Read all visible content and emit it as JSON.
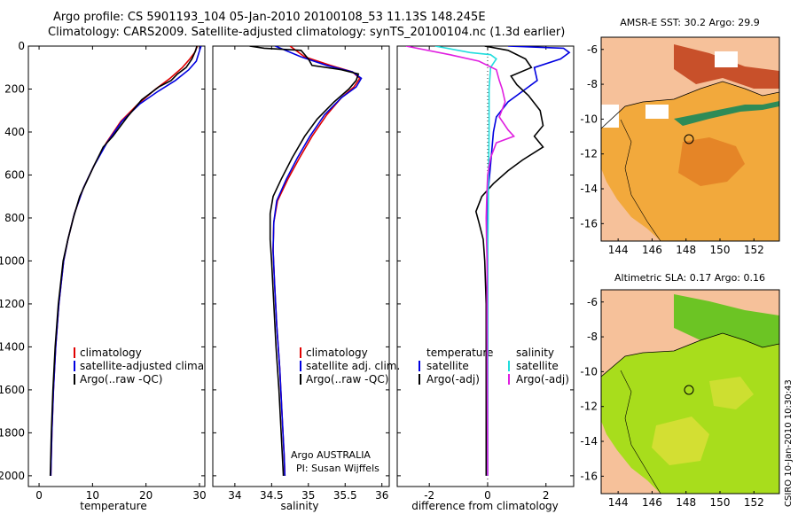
{
  "header": {
    "line1": "Argo profile: CS 5901193_104 05-Jan-2010 20100108_53 11.13S 148.245E",
    "line2": "Climatology: CARS2009. Satellite-adjusted climatology: synTS_20100104.nc (1.3d earlier)"
  },
  "credit": "CSIRO 10-Jan-2010 10:30:43",
  "colors": {
    "red": "#e00000",
    "blue": "#0000e0",
    "black": "#000000",
    "cyan": "#22dddd",
    "magenta": "#e020e0"
  },
  "chart_data": [
    {
      "type": "line",
      "id": "temperature",
      "xlabel": "temperature",
      "ylabel": "",
      "xlim": [
        -2,
        31
      ],
      "ylim": [
        0,
        2050
      ],
      "y_inverted": true,
      "xticks": [
        0,
        10,
        20,
        30
      ],
      "yticks": [
        0,
        200,
        400,
        600,
        800,
        1000,
        1200,
        1400,
        1600,
        1800,
        2000
      ],
      "legend": {
        "placement": "center-right",
        "entries": [
          "climatology",
          "satellite-adjusted climatology",
          "Argo(..raw -QC)"
        ]
      },
      "series": [
        {
          "name": "climatology",
          "color": "red",
          "points": [
            [
              29.6,
              0
            ],
            [
              29.1,
              30
            ],
            [
              28.2,
              60
            ],
            [
              26.8,
              100
            ],
            [
              24.5,
              150
            ],
            [
              21.8,
              200
            ],
            [
              18.5,
              270
            ],
            [
              15.3,
              350
            ],
            [
              12.6,
              450
            ],
            [
              10.2,
              560
            ],
            [
              8.3,
              660
            ],
            [
              6.6,
              780
            ],
            [
              5.4,
              900
            ],
            [
              4.6,
              1000
            ],
            [
              3.7,
              1200
            ],
            [
              3.1,
              1400
            ],
            [
              2.7,
              1600
            ],
            [
              2.4,
              1800
            ],
            [
              2.2,
              2000
            ]
          ]
        },
        {
          "name": "satellite-adjusted climatology",
          "color": "blue",
          "points": [
            [
              30.3,
              0
            ],
            [
              29.9,
              30
            ],
            [
              29.4,
              70
            ],
            [
              28.0,
              110
            ],
            [
              25.5,
              160
            ],
            [
              22.3,
              210
            ],
            [
              18.8,
              270
            ],
            [
              15.5,
              350
            ],
            [
              12.7,
              450
            ],
            [
              10.2,
              560
            ],
            [
              8.3,
              660
            ],
            [
              6.6,
              780
            ],
            [
              5.4,
              900
            ],
            [
              4.6,
              1000
            ],
            [
              3.7,
              1200
            ],
            [
              3.1,
              1400
            ],
            [
              2.7,
              1600
            ],
            [
              2.4,
              1800
            ],
            [
              2.2,
              2000
            ]
          ]
        },
        {
          "name": "Argo(..raw -QC)",
          "color": "black",
          "points": [
            [
              29.5,
              0
            ],
            [
              29.3,
              20
            ],
            [
              28.6,
              60
            ],
            [
              27.5,
              100
            ],
            [
              25.9,
              130
            ],
            [
              24.7,
              160
            ],
            [
              22.4,
              190
            ],
            [
              19.2,
              250
            ],
            [
              16.5,
              330
            ],
            [
              13.8,
              420
            ],
            [
              12.0,
              470
            ],
            [
              10.4,
              550
            ],
            [
              9.1,
              620
            ],
            [
              7.6,
              700
            ],
            [
              6.4,
              800
            ],
            [
              5.4,
              900
            ],
            [
              4.5,
              1000
            ],
            [
              3.6,
              1200
            ],
            [
              3.0,
              1400
            ],
            [
              2.6,
              1600
            ],
            [
              2.3,
              1800
            ],
            [
              2.1,
              2000
            ]
          ]
        }
      ]
    },
    {
      "type": "line",
      "id": "salinity",
      "xlabel": "salinity",
      "ylabel": "",
      "xlim": [
        33.7,
        36.1
      ],
      "ylim": [
        0,
        2050
      ],
      "y_inverted": true,
      "xticks": [
        34,
        34.5,
        35,
        35.5,
        36
      ],
      "yticks": [
        0,
        200,
        400,
        600,
        800,
        1000,
        1200,
        1400,
        1600,
        1800,
        2000
      ],
      "legend": {
        "placement": "center-right",
        "entries": [
          "climatology",
          "satellite adj. clim.",
          "Argo(..raw -QC)"
        ]
      },
      "annotation": [
        "Argo AUSTRALIA",
        "PI: Susan Wijffels"
      ],
      "series": [
        {
          "name": "climatology",
          "color": "red",
          "points": [
            [
              34.75,
              0
            ],
            [
              34.95,
              50
            ],
            [
              35.3,
              90
            ],
            [
              35.6,
              120
            ],
            [
              35.7,
              150
            ],
            [
              35.62,
              190
            ],
            [
              35.45,
              240
            ],
            [
              35.25,
              320
            ],
            [
              35.05,
              420
            ],
            [
              34.88,
              520
            ],
            [
              34.72,
              620
            ],
            [
              34.58,
              720
            ],
            [
              34.53,
              820
            ],
            [
              34.52,
              950
            ],
            [
              34.54,
              1100
            ],
            [
              34.57,
              1300
            ],
            [
              34.61,
              1500
            ],
            [
              34.64,
              1700
            ],
            [
              34.67,
              1900
            ],
            [
              34.68,
              2000
            ]
          ]
        },
        {
          "name": "satellite adj. clim.",
          "color": "blue",
          "points": [
            [
              34.55,
              0
            ],
            [
              34.9,
              50
            ],
            [
              35.25,
              90
            ],
            [
              35.6,
              120
            ],
            [
              35.72,
              150
            ],
            [
              35.65,
              190
            ],
            [
              35.45,
              240
            ],
            [
              35.22,
              320
            ],
            [
              35.02,
              420
            ],
            [
              34.85,
              520
            ],
            [
              34.7,
              620
            ],
            [
              34.57,
              720
            ],
            [
              34.53,
              820
            ],
            [
              34.52,
              950
            ],
            [
              34.54,
              1100
            ],
            [
              34.57,
              1300
            ],
            [
              34.61,
              1500
            ],
            [
              34.64,
              1700
            ],
            [
              34.67,
              1900
            ],
            [
              34.68,
              2000
            ]
          ]
        },
        {
          "name": "Argo(..raw -QC)",
          "color": "black",
          "points": [
            [
              34.2,
              0
            ],
            [
              34.4,
              10
            ],
            [
              34.9,
              20
            ],
            [
              35.0,
              60
            ],
            [
              35.05,
              90
            ],
            [
              35.45,
              110
            ],
            [
              35.68,
              130
            ],
            [
              35.65,
              160
            ],
            [
              35.55,
              200
            ],
            [
              35.35,
              260
            ],
            [
              35.12,
              340
            ],
            [
              34.95,
              420
            ],
            [
              34.78,
              520
            ],
            [
              34.63,
              620
            ],
            [
              34.52,
              700
            ],
            [
              34.48,
              780
            ],
            [
              34.48,
              900
            ],
            [
              34.5,
              1000
            ],
            [
              34.53,
              1200
            ],
            [
              34.56,
              1400
            ],
            [
              34.6,
              1600
            ],
            [
              34.63,
              1800
            ],
            [
              34.66,
              2000
            ]
          ]
        }
      ]
    },
    {
      "type": "line",
      "id": "difference",
      "xlabel": "difference from climatology",
      "ylabel": "",
      "xlim": [
        -3.1,
        2.95
      ],
      "ylim": [
        0,
        2050
      ],
      "y_inverted": true,
      "xticks": [
        -2,
        0,
        2
      ],
      "yticks": [
        0,
        200,
        400,
        600,
        800,
        1000,
        1200,
        1400,
        1600,
        1800,
        2000
      ],
      "zero_line": "dotted",
      "legend": {
        "placement": "center",
        "temperature": [
          "temperature",
          "satellite",
          "Argo(-adj)"
        ],
        "salinity": [
          "salinity",
          "satellite",
          "Argo(-adj)"
        ]
      },
      "series": [
        {
          "name": "temperature satellite",
          "color": "blue",
          "points": [
            [
              0.7,
              0
            ],
            [
              2.6,
              10
            ],
            [
              2.8,
              30
            ],
            [
              2.5,
              60
            ],
            [
              1.6,
              100
            ],
            [
              1.7,
              160
            ],
            [
              1.3,
              200
            ],
            [
              0.7,
              260
            ],
            [
              0.3,
              330
            ],
            [
              0.2,
              400
            ],
            [
              0.1,
              550
            ],
            [
              0,
              700
            ],
            [
              0,
              1000
            ],
            [
              0,
              2000
            ]
          ]
        },
        {
          "name": "temperature Argo(-adj)",
          "color": "black",
          "points": [
            [
              -0.1,
              0
            ],
            [
              0.7,
              20
            ],
            [
              1.3,
              60
            ],
            [
              1.5,
              100
            ],
            [
              0.8,
              140
            ],
            [
              1.0,
              180
            ],
            [
              1.4,
              230
            ],
            [
              1.8,
              300
            ],
            [
              1.9,
              370
            ],
            [
              1.6,
              420
            ],
            [
              1.9,
              470
            ],
            [
              1.2,
              530
            ],
            [
              0.7,
              580
            ],
            [
              0.2,
              640
            ],
            [
              -0.2,
              700
            ],
            [
              -0.4,
              770
            ],
            [
              -0.3,
              820
            ],
            [
              -0.15,
              900
            ],
            [
              -0.1,
              1000
            ],
            [
              -0.05,
              1200
            ],
            [
              -0.05,
              1600
            ],
            [
              -0.05,
              2000
            ]
          ]
        },
        {
          "name": "salinity satellite",
          "color": "cyan",
          "points": [
            [
              -1.8,
              0
            ],
            [
              -0.6,
              30
            ],
            [
              0.1,
              40
            ],
            [
              0.3,
              60
            ],
            [
              0.1,
              100
            ],
            [
              0.05,
              200
            ],
            [
              0.05,
              400
            ],
            [
              0.03,
              600
            ],
            [
              0.02,
              800
            ],
            [
              0,
              1000
            ],
            [
              0,
              2000
            ]
          ]
        },
        {
          "name": "salinity Argo(-adj)",
          "color": "magenta",
          "points": [
            [
              -2.8,
              0
            ],
            [
              -1.3,
              40
            ],
            [
              -0.3,
              70
            ],
            [
              0.3,
              110
            ],
            [
              0.4,
              160
            ],
            [
              0.5,
              200
            ],
            [
              0.6,
              260
            ],
            [
              0.4,
              330
            ],
            [
              0.7,
              390
            ],
            [
              0.9,
              420
            ],
            [
              0.3,
              450
            ],
            [
              0.1,
              520
            ],
            [
              0,
              600
            ],
            [
              -0.03,
              700
            ],
            [
              -0.05,
              800
            ],
            [
              -0.04,
              900
            ],
            [
              -0.02,
              1000
            ],
            [
              -0.02,
              1300
            ],
            [
              -0.01,
              1600
            ],
            [
              0,
              2000
            ]
          ]
        }
      ]
    },
    {
      "type": "heatmap",
      "id": "sst-map",
      "title": "AMSR-E SST: 30.2 Argo: 29.9",
      "xlim": [
        143,
        153.5
      ],
      "ylim": [
        -17,
        -5.3
      ],
      "xticks": [
        144,
        146,
        148,
        150,
        152
      ],
      "yticks": [
        -6,
        -8,
        -10,
        -12,
        -14,
        -16
      ],
      "argo_position": [
        148.245,
        -11.13
      ]
    },
    {
      "type": "heatmap",
      "id": "sla-map",
      "title": "Altimetric SLA: 0.17 Argo: 0.16",
      "xlim": [
        143,
        153.5
      ],
      "ylim": [
        -17,
        -5.3
      ],
      "xticks": [
        144,
        146,
        148,
        150,
        152
      ],
      "yticks": [
        -6,
        -8,
        -10,
        -12,
        -14,
        -16
      ],
      "argo_position": [
        148.245,
        -11.13
      ]
    }
  ]
}
